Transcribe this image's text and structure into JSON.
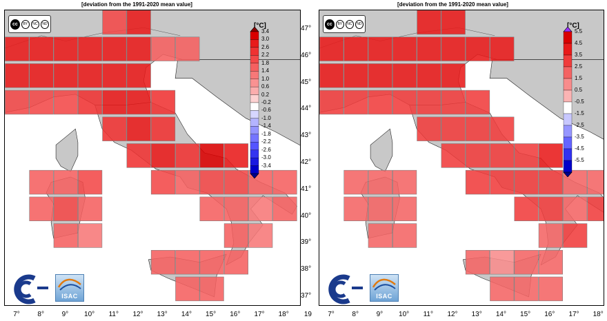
{
  "panels": [
    {
      "id": "left",
      "title": "[deviation from the 1991-2020 mean value]",
      "unit": "[°C]",
      "colorbar_labels": [
        "3.4",
        "3.0",
        "2.6",
        "2.2",
        "1.8",
        "1.4",
        "1.0",
        "0.6",
        "0.2",
        "-0.2",
        "-0.6",
        "-1.0",
        "-1.4",
        "-1.8",
        "-2.2",
        "-2.6",
        "-3.0",
        "-3.4"
      ],
      "colorbar_colors": [
        "#d90000",
        "#e81a1a",
        "#ef3232",
        "#f24848",
        "#f56060",
        "#f77878",
        "#f99292",
        "#fbadad",
        "#fdd2d2",
        "#ffffff",
        "#d6d6ff",
        "#b4b4ff",
        "#9494ff",
        "#7474ff",
        "#5454ff",
        "#3434f0",
        "#1a1ae0",
        "#0000c8"
      ],
      "top_arrow_color": "#8b0000",
      "bottom_arrow_color": "#00008b"
    },
    {
      "id": "right",
      "title": "[deviation from the 1991-2020 mean value]",
      "unit": "[°C]",
      "colorbar_labels": [
        "5.5",
        "4.5",
        "3.5",
        "2.5",
        "1.5",
        "0.5",
        "-0.5",
        "-1.5",
        "-2.5",
        "-3.5",
        "-4.5",
        "-5.5"
      ],
      "colorbar_colors": [
        "#d90000",
        "#e81a1a",
        "#f03c3c",
        "#f46464",
        "#f88c8c",
        "#fbb4b4",
        "#ffffff",
        "#c8c8ff",
        "#9696ff",
        "#6464ff",
        "#3232f0",
        "#0000c8"
      ],
      "top_arrow_color": "#9b30ff",
      "bottom_arrow_color": "#00008b"
    }
  ],
  "x_axis_labels": [
    "7°",
    "8°",
    "9°",
    "10°",
    "11°",
    "12°",
    "13°",
    "14°",
    "15°",
    "16°",
    "17°",
    "18°",
    "19"
  ],
  "y_axis_labels": [
    "47°",
    "46°",
    "45°",
    "44°",
    "43°",
    "42°",
    "41°",
    "40°",
    "39°",
    "38°",
    "37°"
  ],
  "logos": {
    "cc_main": "cc",
    "cc_by": "BY",
    "cc_nc": "NC",
    "cc_nd": "ND",
    "isac": "ISAC"
  },
  "grid_cells": {
    "description_unit": "temperature anomaly °C",
    "left": [
      {
        "lon": 11,
        "lat": 47,
        "v": 2.0
      },
      {
        "lon": 12,
        "lat": 47,
        "v": 2.8
      },
      {
        "lon": 7,
        "lat": 46,
        "v": 2.8
      },
      {
        "lon": 8,
        "lat": 46,
        "v": 2.8
      },
      {
        "lon": 9,
        "lat": 46,
        "v": 2.8
      },
      {
        "lon": 10,
        "lat": 46,
        "v": 2.8
      },
      {
        "lon": 11,
        "lat": 46,
        "v": 2.8
      },
      {
        "lon": 12,
        "lat": 46,
        "v": 2.8
      },
      {
        "lon": 13,
        "lat": 46,
        "v": 1.6
      },
      {
        "lon": 14,
        "lat": 46,
        "v": 1.6
      },
      {
        "lon": 7,
        "lat": 45,
        "v": 3.0
      },
      {
        "lon": 8,
        "lat": 45,
        "v": 3.0
      },
      {
        "lon": 9,
        "lat": 45,
        "v": 3.0
      },
      {
        "lon": 10,
        "lat": 45,
        "v": 3.0
      },
      {
        "lon": 11,
        "lat": 45,
        "v": 3.0
      },
      {
        "lon": 12,
        "lat": 45,
        "v": 2.8
      },
      {
        "lon": 7,
        "lat": 44,
        "v": 2.2
      },
      {
        "lon": 8,
        "lat": 44,
        "v": 2.2
      },
      {
        "lon": 9,
        "lat": 44,
        "v": 2.2
      },
      {
        "lon": 10,
        "lat": 44,
        "v": 2.4
      },
      {
        "lon": 11,
        "lat": 44,
        "v": 2.8
      },
      {
        "lon": 12,
        "lat": 44,
        "v": 2.8
      },
      {
        "lon": 13,
        "lat": 44,
        "v": 2.6
      },
      {
        "lon": 11,
        "lat": 43,
        "v": 2.6
      },
      {
        "lon": 12,
        "lat": 43,
        "v": 2.8
      },
      {
        "lon": 13,
        "lat": 43,
        "v": 2.6
      },
      {
        "lon": 12,
        "lat": 42,
        "v": 2.6
      },
      {
        "lon": 13,
        "lat": 42,
        "v": 2.8
      },
      {
        "lon": 14,
        "lat": 42,
        "v": 2.6
      },
      {
        "lon": 15,
        "lat": 42,
        "v": 3.2
      },
      {
        "lon": 16,
        "lat": 42,
        "v": 2.8
      },
      {
        "lon": 8,
        "lat": 41,
        "v": 1.6
      },
      {
        "lon": 9,
        "lat": 41,
        "v": 1.8
      },
      {
        "lon": 10,
        "lat": 41,
        "v": 2.0
      },
      {
        "lon": 13,
        "lat": 41,
        "v": 2.2
      },
      {
        "lon": 14,
        "lat": 41,
        "v": 1.8
      },
      {
        "lon": 15,
        "lat": 41,
        "v": 2.2
      },
      {
        "lon": 16,
        "lat": 41,
        "v": 2.0
      },
      {
        "lon": 17,
        "lat": 41,
        "v": 1.6
      },
      {
        "lon": 18,
        "lat": 41,
        "v": 1.6
      },
      {
        "lon": 8,
        "lat": 40,
        "v": 1.8
      },
      {
        "lon": 9,
        "lat": 40,
        "v": 2.0
      },
      {
        "lon": 10,
        "lat": 40,
        "v": 1.8
      },
      {
        "lon": 15,
        "lat": 40,
        "v": 1.8
      },
      {
        "lon": 16,
        "lat": 40,
        "v": 1.8
      },
      {
        "lon": 17,
        "lat": 40,
        "v": 1.4
      },
      {
        "lon": 18,
        "lat": 40,
        "v": 1.6
      },
      {
        "lon": 9,
        "lat": 39,
        "v": 1.6
      },
      {
        "lon": 10,
        "lat": 39,
        "v": 1.4
      },
      {
        "lon": 16,
        "lat": 39,
        "v": 1.8
      },
      {
        "lon": 17,
        "lat": 39,
        "v": 1.4
      },
      {
        "lon": 13,
        "lat": 38,
        "v": 1.6
      },
      {
        "lon": 14,
        "lat": 38,
        "v": 1.8
      },
      {
        "lon": 15,
        "lat": 38,
        "v": 1.6
      },
      {
        "lon": 16,
        "lat": 38,
        "v": 1.6
      },
      {
        "lon": 14,
        "lat": 37,
        "v": 1.6
      },
      {
        "lon": 15,
        "lat": 37,
        "v": 1.8
      }
    ],
    "right": [
      {
        "lon": 11,
        "lat": 47,
        "v": 4.0
      },
      {
        "lon": 12,
        "lat": 47,
        "v": 4.0
      },
      {
        "lon": 7,
        "lat": 46,
        "v": 4.0
      },
      {
        "lon": 8,
        "lat": 46,
        "v": 4.0
      },
      {
        "lon": 9,
        "lat": 46,
        "v": 4.0
      },
      {
        "lon": 10,
        "lat": 46,
        "v": 4.0
      },
      {
        "lon": 11,
        "lat": 46,
        "v": 4.0
      },
      {
        "lon": 12,
        "lat": 46,
        "v": 4.0
      },
      {
        "lon": 13,
        "lat": 46,
        "v": 3.6
      },
      {
        "lon": 14,
        "lat": 46,
        "v": 3.6
      },
      {
        "lon": 7,
        "lat": 45,
        "v": 4.0
      },
      {
        "lon": 8,
        "lat": 45,
        "v": 4.0
      },
      {
        "lon": 9,
        "lat": 45,
        "v": 4.0
      },
      {
        "lon": 10,
        "lat": 45,
        "v": 4.0
      },
      {
        "lon": 11,
        "lat": 45,
        "v": 4.0
      },
      {
        "lon": 12,
        "lat": 45,
        "v": 3.8
      },
      {
        "lon": 7,
        "lat": 44,
        "v": 3.0
      },
      {
        "lon": 8,
        "lat": 44,
        "v": 3.0
      },
      {
        "lon": 9,
        "lat": 44,
        "v": 2.8
      },
      {
        "lon": 10,
        "lat": 44,
        "v": 3.0
      },
      {
        "lon": 11,
        "lat": 44,
        "v": 3.2
      },
      {
        "lon": 12,
        "lat": 44,
        "v": 3.2
      },
      {
        "lon": 13,
        "lat": 44,
        "v": 3.0
      },
      {
        "lon": 11,
        "lat": 43,
        "v": 3.0
      },
      {
        "lon": 12,
        "lat": 43,
        "v": 3.2
      },
      {
        "lon": 13,
        "lat": 43,
        "v": 3.0
      },
      {
        "lon": 14,
        "lat": 43,
        "v": 2.8
      },
      {
        "lon": 12,
        "lat": 42,
        "v": 3.0
      },
      {
        "lon": 13,
        "lat": 42,
        "v": 3.4
      },
      {
        "lon": 14,
        "lat": 42,
        "v": 3.2
      },
      {
        "lon": 15,
        "lat": 42,
        "v": 3.4
      },
      {
        "lon": 16,
        "lat": 42,
        "v": 3.6
      },
      {
        "lon": 8,
        "lat": 41,
        "v": 2.0
      },
      {
        "lon": 9,
        "lat": 41,
        "v": 2.2
      },
      {
        "lon": 10,
        "lat": 41,
        "v": 2.2
      },
      {
        "lon": 13,
        "lat": 41,
        "v": 2.6
      },
      {
        "lon": 14,
        "lat": 41,
        "v": 2.6
      },
      {
        "lon": 15,
        "lat": 41,
        "v": 2.8
      },
      {
        "lon": 16,
        "lat": 41,
        "v": 2.6
      },
      {
        "lon": 17,
        "lat": 41,
        "v": 2.4
      },
      {
        "lon": 18,
        "lat": 41,
        "v": 2.0
      },
      {
        "lon": 8,
        "lat": 40,
        "v": 2.0
      },
      {
        "lon": 9,
        "lat": 40,
        "v": 2.4
      },
      {
        "lon": 10,
        "lat": 40,
        "v": 2.2
      },
      {
        "lon": 15,
        "lat": 40,
        "v": 2.6
      },
      {
        "lon": 16,
        "lat": 40,
        "v": 2.6
      },
      {
        "lon": 17,
        "lat": 40,
        "v": 2.2
      },
      {
        "lon": 18,
        "lat": 40,
        "v": 2.6
      },
      {
        "lon": 9,
        "lat": 39,
        "v": 2.2
      },
      {
        "lon": 10,
        "lat": 39,
        "v": 2.2
      },
      {
        "lon": 16,
        "lat": 39,
        "v": 2.4
      },
      {
        "lon": 17,
        "lat": 39,
        "v": 2.6
      },
      {
        "lon": 13,
        "lat": 38,
        "v": 2.0
      },
      {
        "lon": 14,
        "lat": 38,
        "v": 1.4
      },
      {
        "lon": 15,
        "lat": 38,
        "v": 2.0
      },
      {
        "lon": 16,
        "lat": 38,
        "v": 2.4
      },
      {
        "lon": 14,
        "lat": 37,
        "v": 2.2
      },
      {
        "lon": 15,
        "lat": 37,
        "v": 2.4
      },
      {
        "lon": 16,
        "lat": 37,
        "v": 2.2
      }
    ]
  }
}
